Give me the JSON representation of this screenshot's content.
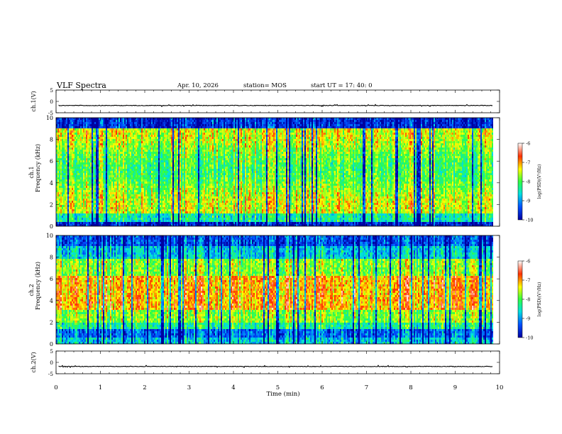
{
  "header": {
    "title": "VLF Spectra",
    "date": "Apr. 10, 2026",
    "station": "station= MOS",
    "start": "start  UT  =    17: 40: 0"
  },
  "colorbar_scale": [
    "#0000a0",
    "#0050ff",
    "#00e0e0",
    "#30ff40",
    "#ffff00",
    "#ff3000",
    "#ffffff"
  ],
  "chart_data": [
    {
      "type": "line",
      "ylabel": "ch.1(V)",
      "ylim": [
        -5,
        5
      ],
      "yticks": [
        "5",
        "0",
        "-5"
      ],
      "series": [
        {
          "values_const": -1.8
        }
      ]
    },
    {
      "type": "heatmap",
      "ylabel_top": "ch.1",
      "ylabel": "Frequency  (kHz)",
      "ylim": [
        0,
        10
      ],
      "yticks": [
        "10",
        "8",
        "6",
        "4",
        "2",
        "0"
      ],
      "colorbar": {
        "label": "log(PSD)(V²/Hz)",
        "range": [
          -10,
          -6
        ],
        "ticks": [
          "-6",
          "-7",
          "-8",
          "-9",
          "-10"
        ]
      }
    },
    {
      "type": "heatmap",
      "ylabel_top": "ch.2",
      "ylabel": "Frequency  (kHz)",
      "ylim": [
        0,
        10
      ],
      "yticks": [
        "10",
        "8",
        "6",
        "4",
        "2",
        "0"
      ],
      "colorbar": {
        "label": "log(PSD)(V²/Hz)",
        "range": [
          -10,
          -6
        ],
        "ticks": [
          "-6",
          "-7",
          "-8",
          "-9",
          "-10"
        ]
      }
    },
    {
      "type": "line",
      "ylabel": "ch.2(V)",
      "ylim": [
        -5,
        5
      ],
      "yticks": [
        "5",
        "0",
        "-5"
      ],
      "series": [
        {
          "values_const": -1.8
        }
      ]
    }
  ],
  "xaxis": {
    "label": "Time  (min)",
    "xlim": [
      0,
      10
    ],
    "data_end": 9.85,
    "ticks": [
      "0",
      "1",
      "2",
      "3",
      "4",
      "5",
      "6",
      "7",
      "8",
      "9",
      "10"
    ]
  }
}
